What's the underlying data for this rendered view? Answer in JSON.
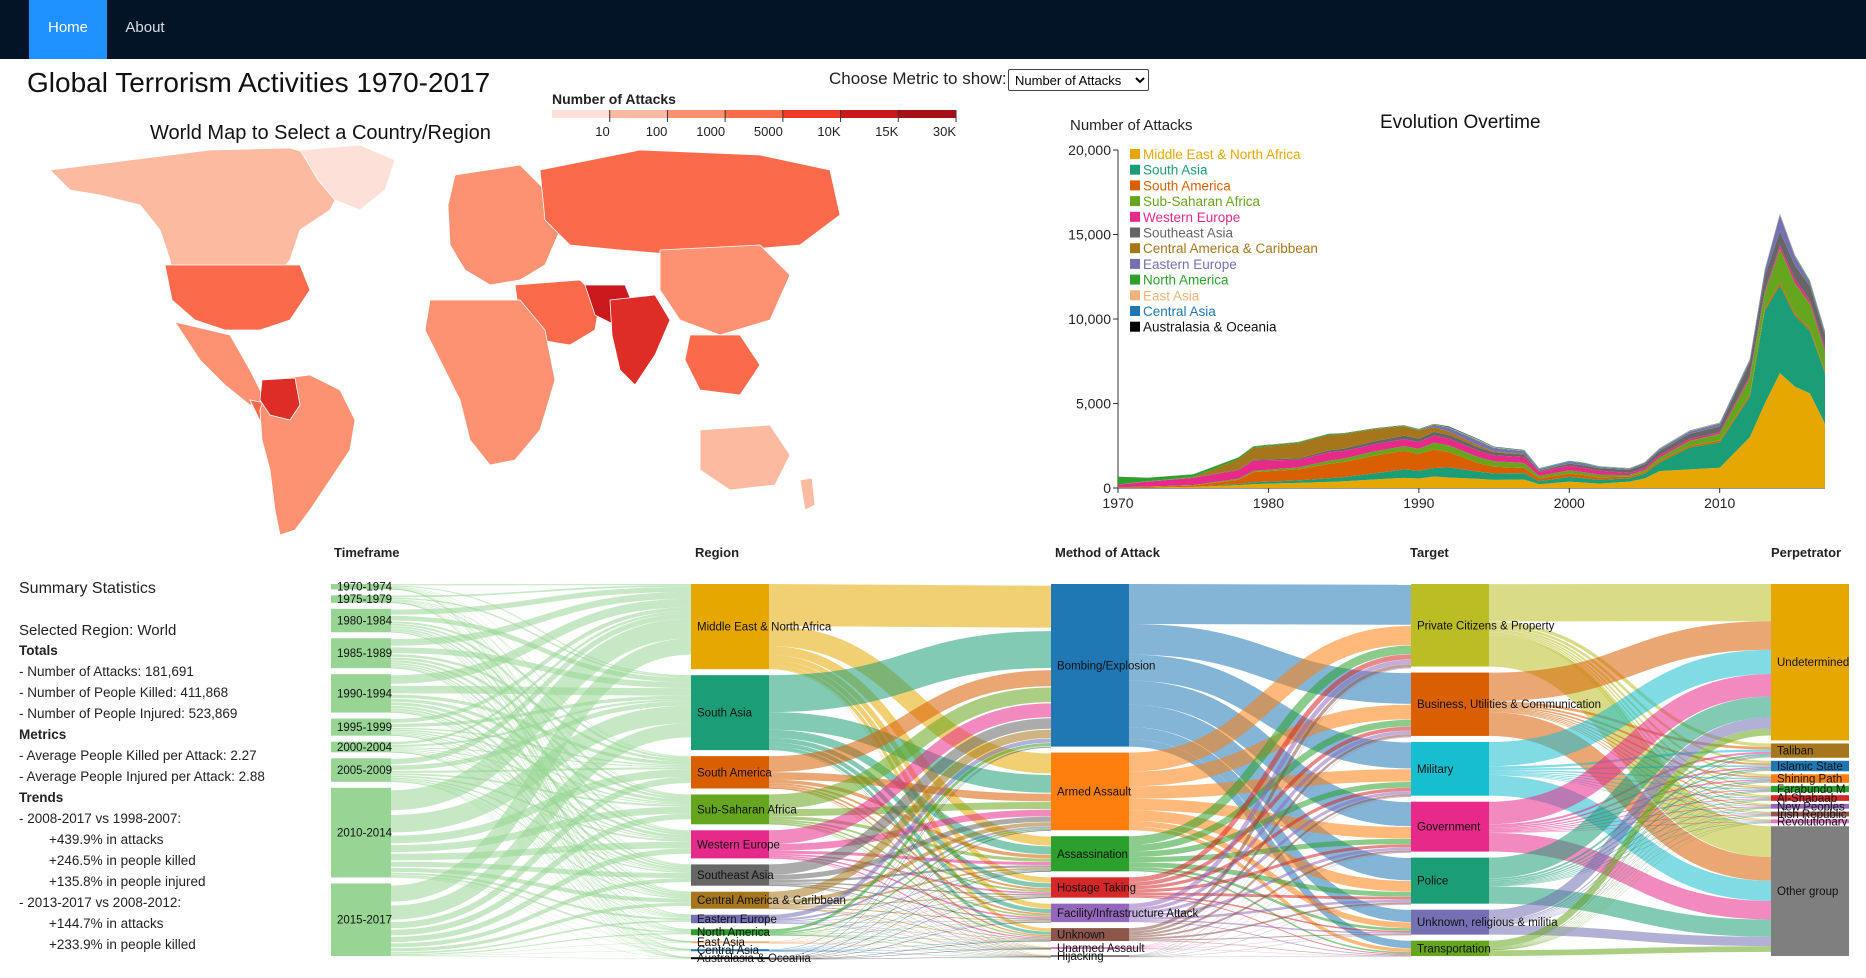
{
  "nav": {
    "home": "Home",
    "about": "About"
  },
  "page_title": "Global Terrorism Activities 1970-2017",
  "map_title": "World Map to Select a Country/Region",
  "metric": {
    "label": "Choose Metric to show:",
    "selected": "Number of Attacks"
  },
  "colors": {
    "nav_bg": "#041427",
    "nav_active": "#1e90ff"
  },
  "legend_scale": {
    "title": "Number of Attacks",
    "ticks": [
      "10",
      "100",
      "1000",
      "5000",
      "10K",
      "15K",
      "30K"
    ],
    "colors": [
      "#fde0d7",
      "#fcbba1",
      "#fc9272",
      "#fb6a4a",
      "#ef3b2c",
      "#cb181d",
      "#a50f15"
    ]
  },
  "chart_data": [
    {
      "type": "area",
      "title": "Evolution Overtime",
      "ylabel": "Number of Attacks",
      "xlim": [
        1970,
        2017
      ],
      "ylim": [
        0,
        20000
      ],
      "x_ticks": [
        "1970",
        "1980",
        "1990",
        "2000",
        "2010"
      ],
      "y_ticks": [
        "0",
        "5,000",
        "10,000",
        "15,000",
        "20,000"
      ],
      "legend_position": "top-left",
      "x": [
        1970,
        1972,
        1975,
        1978,
        1979,
        1982,
        1984,
        1985,
        1987,
        1989,
        1990,
        1991,
        1992,
        1994,
        1995,
        1997,
        1998,
        2000,
        2001,
        2002,
        2004,
        2005,
        2006,
        2008,
        2010,
        2012,
        2013,
        2014,
        2015,
        2016,
        2017
      ],
      "series": [
        {
          "name": "Middle East & North Africa",
          "color": "#e6a800",
          "values": [
            10,
            20,
            60,
            170,
            230,
            300,
            360,
            400,
            500,
            600,
            560,
            680,
            620,
            540,
            480,
            500,
            220,
            380,
            320,
            260,
            380,
            560,
            1000,
            1100,
            1200,
            3000,
            5000,
            6800,
            6000,
            5600,
            3800
          ]
        },
        {
          "name": "South Asia",
          "color": "#1b9e77",
          "values": [
            0,
            0,
            10,
            70,
            110,
            150,
            220,
            240,
            360,
            500,
            460,
            500,
            600,
            420,
            380,
            380,
            180,
            280,
            260,
            220,
            200,
            280,
            500,
            1300,
            1500,
            2400,
            5500,
            5200,
            4200,
            3700,
            3000
          ]
        },
        {
          "name": "South America",
          "color": "#d95f02",
          "values": [
            30,
            40,
            80,
            250,
            600,
            650,
            850,
            900,
            1050,
            1100,
            1000,
            1100,
            900,
            500,
            400,
            300,
            160,
            200,
            180,
            150,
            90,
            90,
            100,
            90,
            100,
            120,
            130,
            160,
            130,
            110,
            100
          ]
        },
        {
          "name": "Sub-Saharan Africa",
          "color": "#66a61e",
          "values": [
            10,
            20,
            30,
            60,
            70,
            120,
            180,
            200,
            250,
            270,
            300,
            400,
            400,
            350,
            320,
            300,
            150,
            180,
            170,
            150,
            100,
            130,
            200,
            300,
            400,
            1000,
            900,
            2000,
            1800,
            1500,
            1200
          ]
        },
        {
          "name": "Western Europe",
          "color": "#e7298a",
          "values": [
            150,
            300,
            420,
            500,
            600,
            450,
            500,
            450,
            420,
            420,
            400,
            420,
            400,
            380,
            350,
            350,
            250,
            280,
            260,
            240,
            120,
            140,
            140,
            120,
            100,
            120,
            120,
            200,
            250,
            180,
            180
          ]
        },
        {
          "name": "Southeast Asia",
          "color": "#666666",
          "values": [
            5,
            10,
            30,
            40,
            60,
            80,
            120,
            140,
            180,
            210,
            200,
            220,
            220,
            200,
            180,
            150,
            60,
            120,
            140,
            150,
            180,
            200,
            250,
            300,
            350,
            800,
            900,
            850,
            800,
            850,
            750
          ]
        },
        {
          "name": "Central America & Caribbean",
          "color": "#a6761d",
          "values": [
            5,
            10,
            20,
            600,
            700,
            900,
            900,
            860,
            700,
            550,
            500,
            280,
            200,
            120,
            60,
            40,
            20,
            10,
            10,
            5,
            5,
            5,
            5,
            5,
            5,
            5,
            5,
            5,
            5,
            5,
            5
          ]
        },
        {
          "name": "Eastern Europe",
          "color": "#7570b3",
          "values": [
            0,
            0,
            0,
            0,
            0,
            0,
            0,
            0,
            0,
            10,
            20,
            120,
            200,
            250,
            180,
            150,
            80,
            100,
            90,
            60,
            60,
            80,
            100,
            120,
            150,
            100,
            300,
            900,
            500,
            200,
            150
          ]
        },
        {
          "name": "North America",
          "color": "#2ca02c",
          "values": [
            450,
            200,
            150,
            110,
            80,
            60,
            50,
            40,
            40,
            40,
            40,
            30,
            30,
            30,
            30,
            25,
            20,
            30,
            40,
            30,
            20,
            20,
            20,
            25,
            25,
            30,
            30,
            30,
            40,
            80,
            60
          ]
        },
        {
          "name": "East Asia",
          "color": "#f0b27a",
          "values": [
            0,
            0,
            5,
            5,
            10,
            10,
            10,
            10,
            10,
            10,
            10,
            20,
            20,
            40,
            30,
            20,
            10,
            10,
            10,
            10,
            10,
            10,
            20,
            20,
            20,
            20,
            20,
            40,
            30,
            20,
            20
          ]
        },
        {
          "name": "Central Asia",
          "color": "#1f77b4",
          "values": [
            0,
            0,
            0,
            0,
            0,
            0,
            0,
            0,
            0,
            0,
            0,
            10,
            20,
            30,
            30,
            20,
            10,
            20,
            10,
            10,
            5,
            5,
            10,
            15,
            10,
            20,
            20,
            30,
            20,
            15,
            15
          ]
        },
        {
          "name": "Australasia & Oceania",
          "color": "#000000",
          "values": [
            5,
            5,
            10,
            10,
            10,
            10,
            10,
            10,
            15,
            10,
            10,
            15,
            30,
            15,
            10,
            10,
            5,
            5,
            5,
            5,
            5,
            5,
            5,
            10,
            10,
            10,
            10,
            10,
            10,
            10,
            10
          ]
        }
      ]
    },
    {
      "type": "sankey",
      "columns": [
        "Timeframe",
        "Region",
        "Method of Attack",
        "Target",
        "Perpetrator"
      ],
      "nodes": [
        {
          "col": 0,
          "label": "1970-1974",
          "value": 2500,
          "color": "#98d594"
        },
        {
          "col": 0,
          "label": "1975-1979",
          "value": 3500,
          "color": "#98d594"
        },
        {
          "col": 0,
          "label": "1980-1984",
          "value": 11000,
          "color": "#98d594"
        },
        {
          "col": 0,
          "label": "1985-1989",
          "value": 14000,
          "color": "#98d594"
        },
        {
          "col": 0,
          "label": "1990-1994",
          "value": 18000,
          "color": "#98d594"
        },
        {
          "col": 0,
          "label": "1995-1999",
          "value": 8000,
          "color": "#98d594"
        },
        {
          "col": 0,
          "label": "2000-2004",
          "value": 5000,
          "color": "#98d594"
        },
        {
          "col": 0,
          "label": "2005-2009",
          "value": 11000,
          "color": "#98d594"
        },
        {
          "col": 0,
          "label": "2010-2014",
          "value": 42000,
          "color": "#98d594"
        },
        {
          "col": 0,
          "label": "2015-2017",
          "value": 34000,
          "color": "#98d594"
        },
        {
          "col": 1,
          "label": "Middle East & North Africa",
          "value": 50000,
          "color": "#e6a800"
        },
        {
          "col": 1,
          "label": "South Asia",
          "value": 44000,
          "color": "#1b9e77"
        },
        {
          "col": 1,
          "label": "South America",
          "value": 19000,
          "color": "#d95f02"
        },
        {
          "col": 1,
          "label": "Sub-Saharan Africa",
          "value": 17500,
          "color": "#66a61e"
        },
        {
          "col": 1,
          "label": "Western Europe",
          "value": 16500,
          "color": "#e7298a"
        },
        {
          "col": 1,
          "label": "Southeast Asia",
          "value": 12500,
          "color": "#666666"
        },
        {
          "col": 1,
          "label": "Central America & Caribbean",
          "value": 10000,
          "color": "#a6761d"
        },
        {
          "col": 1,
          "label": "Eastern Europe",
          "value": 5000,
          "color": "#7570b3"
        },
        {
          "col": 1,
          "label": "North America",
          "value": 3500,
          "color": "#2ca02c"
        },
        {
          "col": 1,
          "label": "East Asia",
          "value": 800,
          "color": "#f0b27a"
        },
        {
          "col": 1,
          "label": "Central Asia",
          "value": 560,
          "color": "#1f77b4"
        },
        {
          "col": 1,
          "label": "Australasia & Oceania",
          "value": 280,
          "color": "#000000"
        },
        {
          "col": 2,
          "label": "Bombing/Explosion",
          "value": 88000,
          "color": "#1f77b4"
        },
        {
          "col": 2,
          "label": "Armed Assault",
          "value": 42000,
          "color": "#ff7f0e"
        },
        {
          "col": 2,
          "label": "Assassination",
          "value": 19000,
          "color": "#2ca02c"
        },
        {
          "col": 2,
          "label": "Hostage Taking",
          "value": 11000,
          "color": "#d62728"
        },
        {
          "col": 2,
          "label": "Facility/Infrastructure Attack",
          "value": 10000,
          "color": "#9467bd"
        },
        {
          "col": 2,
          "label": "Unknown",
          "value": 7000,
          "color": "#8c564b"
        },
        {
          "col": 2,
          "label": "Unarmed Assault",
          "value": 1000,
          "color": "#e377c2"
        },
        {
          "col": 2,
          "label": "Hijacking",
          "value": 600,
          "color": "#7f7f7f"
        },
        {
          "col": 3,
          "label": "Private Citizens & Property",
          "value": 43000,
          "color": "#bcbd22"
        },
        {
          "col": 3,
          "label": "Business, Utilities & Communication",
          "value": 33000,
          "color": "#d95f02"
        },
        {
          "col": 3,
          "label": "Military",
          "value": 28000,
          "color": "#17becf"
        },
        {
          "col": 3,
          "label": "Government",
          "value": 26000,
          "color": "#e7298a"
        },
        {
          "col": 3,
          "label": "Police",
          "value": 24000,
          "color": "#1b9e77"
        },
        {
          "col": 3,
          "label": "Unknown, religious & militia",
          "value": 13000,
          "color": "#7570b3"
        },
        {
          "col": 3,
          "label": "Transportation",
          "value": 8000,
          "color": "#66a61e"
        },
        {
          "col": 4,
          "label": "Undetermined",
          "value": 82000,
          "color": "#e6a800"
        },
        {
          "col": 4,
          "label": "Taliban",
          "value": 7500,
          "color": "#a6761d"
        },
        {
          "col": 4,
          "label": "Islamic State",
          "value": 5500,
          "color": "#1f77b4"
        },
        {
          "col": 4,
          "label": "Shining Path",
          "value": 4500,
          "color": "#ff7f0e"
        },
        {
          "col": 4,
          "label": "Farabundo M",
          "value": 3300,
          "color": "#2ca02c"
        },
        {
          "col": 4,
          "label": "Al-Shabaab",
          "value": 3000,
          "color": "#d62728"
        },
        {
          "col": 4,
          "label": "New Peoples",
          "value": 2500,
          "color": "#9467bd"
        },
        {
          "col": 4,
          "label": "Irish Republic",
          "value": 2500,
          "color": "#8c564b"
        },
        {
          "col": 4,
          "label": "Revolutionary",
          "value": 2000,
          "color": "#e377c2"
        },
        {
          "col": 4,
          "label": "Other group",
          "value": 68000,
          "color": "#7f7f7f"
        }
      ]
    }
  ],
  "summary": {
    "title": "Summary Statistics",
    "selected": "Selected Region: World",
    "totals_label": "Totals",
    "attacks": "- Number of Attacks: 181,691",
    "killed": "- Number of People Killed: 411,868",
    "injured": "- Number of People Injured: 523,869",
    "metrics_label": "Metrics",
    "avg_killed": "- Average People Killed per Attack: 2.27",
    "avg_injured": "- Average People Injured per Attack: 2.88",
    "trends_label": "Trends",
    "t1": "- 2008-2017 vs 1998-2007:",
    "t1a": "+439.9% in attacks",
    "t1b": "+246.5% in people killed",
    "t1c": "+135.8% in people injured",
    "t2": "- 2013-2017 vs 2008-2012:",
    "t2a": "+144.7% in attacks",
    "t2b": "+233.9% in people killed"
  }
}
